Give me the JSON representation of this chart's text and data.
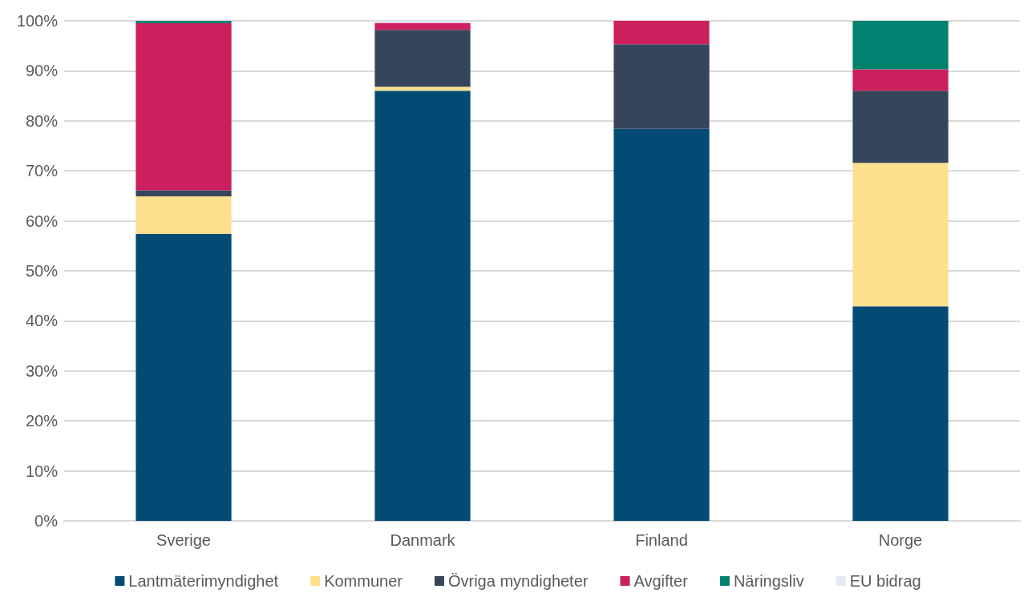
{
  "chart_data": {
    "type": "bar",
    "stacked": true,
    "categories": [
      "Sverige",
      "Danmark",
      "Finland",
      "Norge"
    ],
    "series": [
      {
        "name": "Lantmäterimyndighet",
        "color": "#034b74",
        "values": [
          57.4,
          86.0,
          78.4,
          42.9
        ]
      },
      {
        "name": "Kommuner",
        "color": "#fedf8d",
        "values": [
          7.5,
          0.8,
          0,
          28.7
        ]
      },
      {
        "name": "Övriga myndigheter",
        "color": "#35455a",
        "values": [
          1.2,
          11.4,
          16.9,
          14.4
        ]
      },
      {
        "name": "Avgifter",
        "color": "#cc1f5e",
        "values": [
          33.4,
          1.4,
          4.7,
          4.3
        ]
      },
      {
        "name": "Näringsliv",
        "color": "#00826f",
        "values": [
          0.5,
          0,
          0,
          9.7
        ]
      },
      {
        "name": "EU bidrag",
        "color": "#e5e9f2",
        "values": [
          0,
          0.4,
          0,
          0
        ]
      }
    ],
    "ylim": [
      0,
      100
    ],
    "yticks": [
      {
        "value": 0,
        "label": "0%"
      },
      {
        "value": 10,
        "label": "10%"
      },
      {
        "value": 20,
        "label": "20%"
      },
      {
        "value": 30,
        "label": "30%"
      },
      {
        "value": 40,
        "label": "40%"
      },
      {
        "value": 50,
        "label": "50%"
      },
      {
        "value": 60,
        "label": "60%"
      },
      {
        "value": 70,
        "label": "70%"
      },
      {
        "value": 80,
        "label": "80%"
      },
      {
        "value": 90,
        "label": "90%"
      },
      {
        "value": 100,
        "label": "100%"
      }
    ],
    "grid": "y",
    "legend": "bottom"
  }
}
